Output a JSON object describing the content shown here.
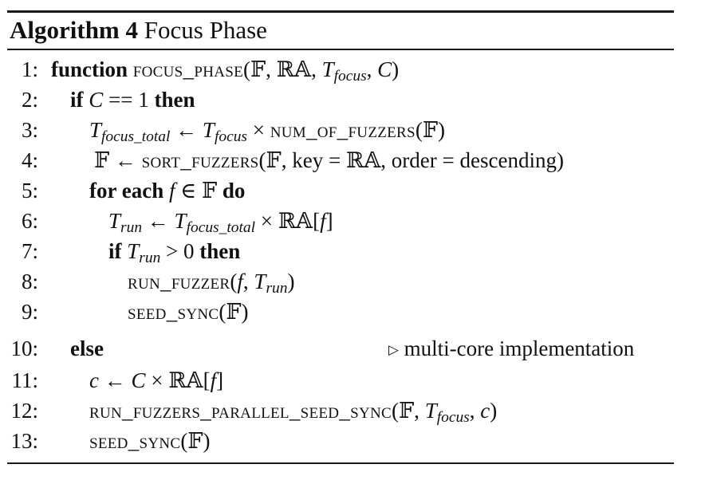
{
  "caption": {
    "label": "Algorithm 4",
    "title": "Focus Phase"
  },
  "lines": [
    {
      "n": "1:",
      "t": {
        "kw": "function",
        "fn": "focus_phase",
        "open": "(",
        "a1": "𝔽, ℝ𝔸, ",
        "T": "T",
        "Tsub": "focus",
        "sep": ", ",
        "C": "C",
        "close": ")"
      }
    },
    {
      "n": "2:",
      "t": {
        "if": "if",
        "C": "C",
        "op": " == 1 ",
        "then": "then"
      }
    },
    {
      "n": "3:",
      "t": {
        "T1": "T",
        "T1sub": "focus_total",
        "arrow": " ← ",
        "T2": "T",
        "T2sub": "focus",
        "times": " × ",
        "fn": "num_of_fuzzers",
        "args": "(𝔽)"
      }
    },
    {
      "n": "4:",
      "t": {
        "lhs": "𝔽 ← ",
        "fn": "sort_fuzzers",
        "args": "(𝔽, key = ℝ𝔸, order = descending)"
      }
    },
    {
      "n": "5:",
      "t": {
        "for": "for each",
        "f": "f",
        "in": " ∈ 𝔽 ",
        "do": "do"
      }
    },
    {
      "n": "6:",
      "t": {
        "T1": "T",
        "T1sub": "run",
        "arrow": " ← ",
        "T2": "T",
        "T2sub": "focus_total",
        "rest": " × ℝ𝔸[",
        "f": "f",
        "close": "]"
      }
    },
    {
      "n": "7:",
      "t": {
        "if": "if",
        "T": "T",
        "Tsub": "run",
        "op": " > 0 ",
        "then": "then"
      }
    },
    {
      "n": "8:",
      "t": {
        "fn": "run_fuzzer",
        "open": "(",
        "f": "f",
        "sep": ", ",
        "T": "T",
        "Tsub": "run",
        "close": ")"
      }
    },
    {
      "n": "9:",
      "t": {
        "fn": "seed_sync",
        "args": "(𝔽)"
      }
    },
    {
      "n": "10:",
      "t": {
        "else": "else",
        "comment": "multi-core implementation",
        "tri": "▷"
      }
    },
    {
      "n": "11:",
      "t": {
        "c": "c",
        "arrow": " ← ",
        "C": "C",
        "rest": " × ℝ𝔸[",
        "f": "f",
        "close": "]"
      }
    },
    {
      "n": "12:",
      "t": {
        "fn": "run_fuzzers_parallel_seed_sync",
        "open": "(𝔽, ",
        "T": "T",
        "Tsub": "focus",
        "sep": ", ",
        "c": "c",
        "close": ")"
      }
    },
    {
      "n": "13:",
      "t": {
        "fn": "seed_sync",
        "args": "(𝔽)"
      }
    }
  ]
}
